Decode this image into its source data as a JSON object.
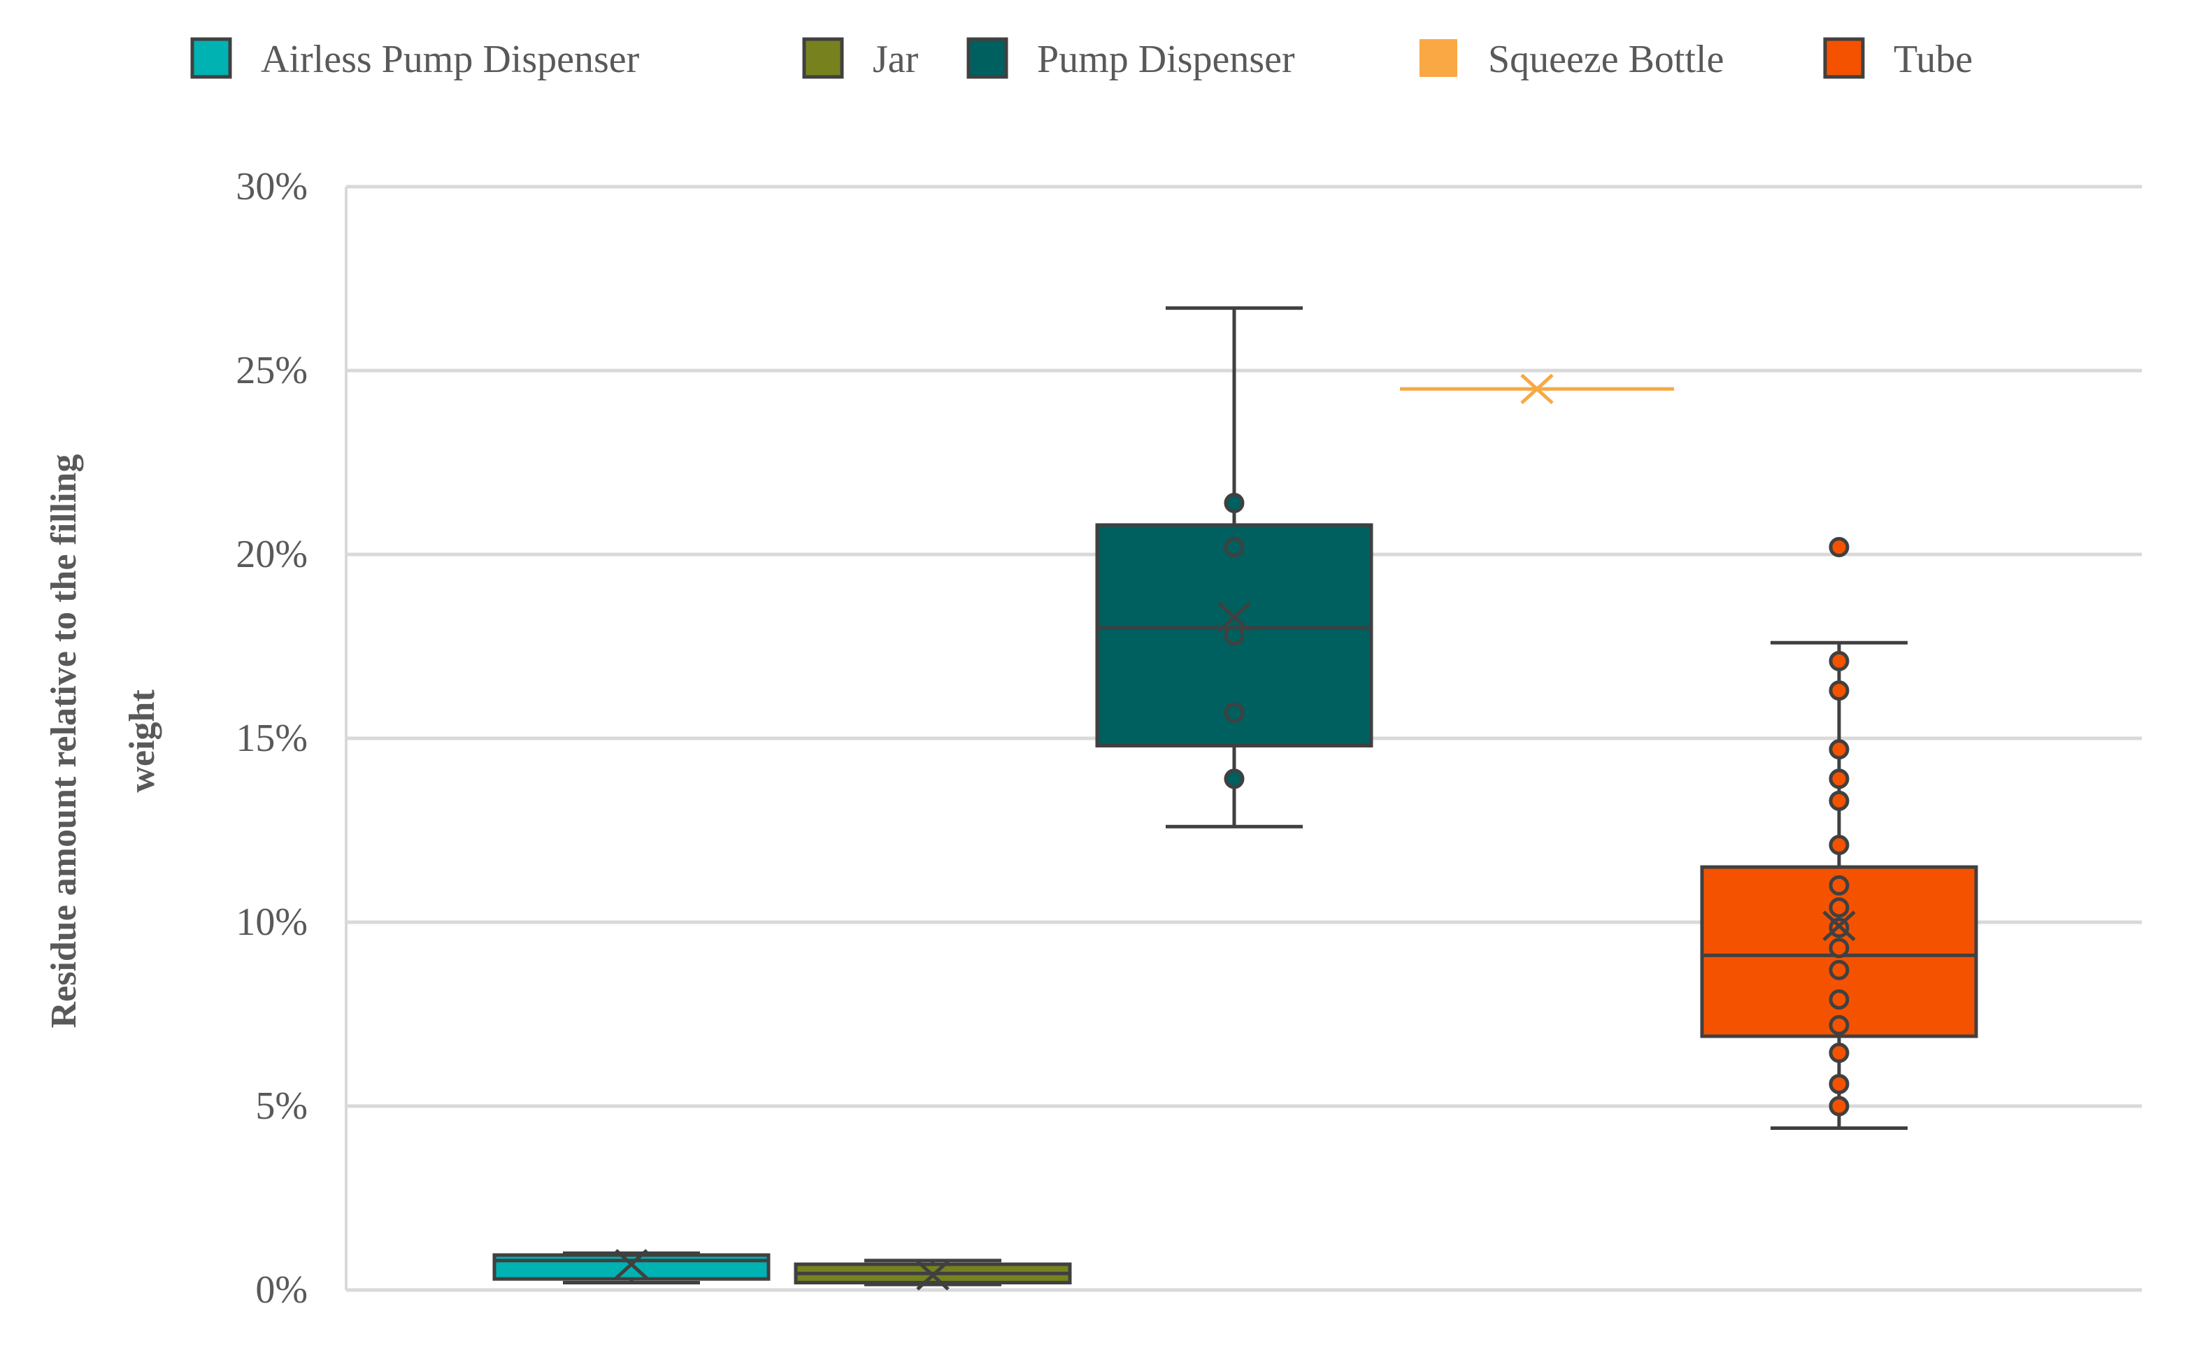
{
  "chart_data": {
    "type": "box",
    "title": "",
    "xlabel": "",
    "ylabel_lines": [
      "Residue amount relative to the filling",
      "weight"
    ],
    "ylim": [
      0,
      30
    ],
    "yticks": [
      0,
      5,
      10,
      15,
      20,
      25,
      30
    ],
    "ytick_labels": [
      "0%",
      "5%",
      "10%",
      "15%",
      "20%",
      "25%",
      "30%"
    ],
    "grid": true,
    "legend_position": "top",
    "series": [
      {
        "name": "Airless Pump Dispenser",
        "color": "#00B2B2",
        "whisker_low": 0.2,
        "q1": 0.3,
        "median": 0.8,
        "q3": 0.95,
        "whisker_high": 1.0,
        "mean": 0.7,
        "points": []
      },
      {
        "name": "Jar",
        "color": "#77821E",
        "whisker_low": 0.15,
        "q1": 0.2,
        "median": 0.45,
        "q3": 0.7,
        "whisker_high": 0.8,
        "mean": 0.4,
        "points": []
      },
      {
        "name": "Pump Dispenser",
        "color": "#005F5F",
        "whisker_low": 12.6,
        "q1": 14.8,
        "median": 18.0,
        "q3": 20.8,
        "whisker_high": 26.7,
        "mean": 18.3,
        "points": [
          21.4,
          20.2,
          17.8,
          15.7,
          13.9
        ]
      },
      {
        "name": "Squeeze Bottle",
        "color": "#F9A843",
        "whisker_low": 24.5,
        "q1": 24.5,
        "median": 24.5,
        "q3": 24.5,
        "whisker_high": 24.5,
        "mean": 24.5,
        "points": []
      },
      {
        "name": "Tube",
        "color": "#F55200",
        "whisker_low": 4.4,
        "q1": 6.9,
        "median": 9.1,
        "q3": 11.5,
        "whisker_high": 17.6,
        "mean": 9.9,
        "points": [
          20.2,
          17.1,
          16.3,
          14.7,
          13.9,
          13.3,
          12.1,
          11.0,
          10.4,
          9.85,
          9.3,
          8.7,
          7.9,
          7.2,
          6.45,
          5.6,
          5.0
        ]
      }
    ]
  }
}
